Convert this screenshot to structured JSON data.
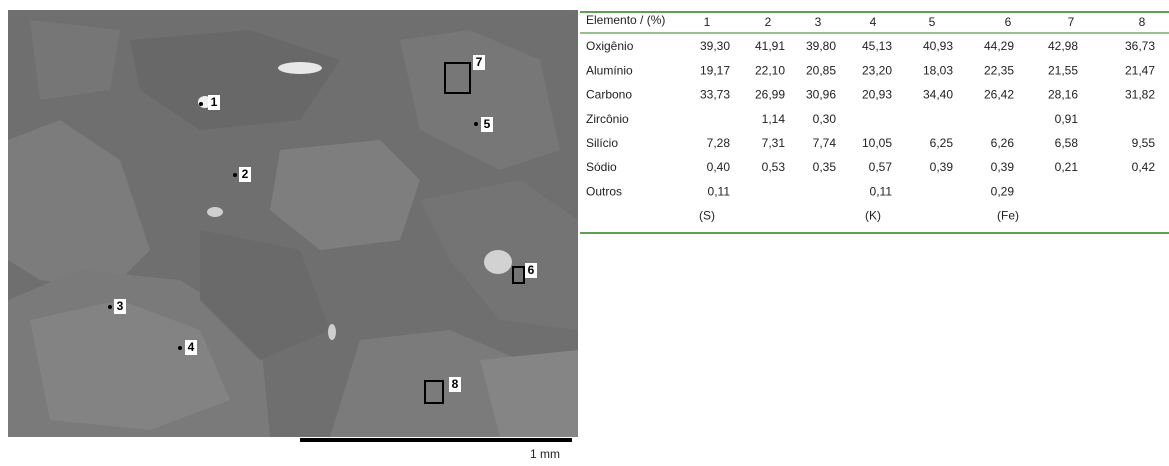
{
  "image": {
    "markers": [
      "1",
      "2",
      "3",
      "4",
      "5",
      "6",
      "7",
      "8"
    ],
    "scale_label": "1 mm"
  },
  "table": {
    "header": [
      "Elemento / (%)",
      "1",
      "2",
      "3",
      "4",
      "5",
      "6",
      "7",
      "8"
    ],
    "rows": [
      {
        "label": "Oxigênio",
        "values": [
          "39,30",
          "41,91",
          "39,80",
          "45,13",
          "40,93",
          "44,29",
          "42,98",
          "36,73"
        ]
      },
      {
        "label": "Alumínio",
        "values": [
          "19,17",
          "22,10",
          "20,85",
          "23,20",
          "18,03",
          "22,35",
          "21,55",
          "21,47"
        ]
      },
      {
        "label": "Carbono",
        "values": [
          "33,73",
          "26,99",
          "30,96",
          "20,93",
          "34,40",
          "26,42",
          "28,16",
          "31,82"
        ]
      },
      {
        "label": "Zircônio",
        "values": [
          null,
          "1,14",
          "0,30",
          null,
          null,
          null,
          "0,91",
          null
        ]
      },
      {
        "label": "Silício",
        "values": [
          "7,28",
          "7,31",
          "7,74",
          "10,05",
          "6,25",
          "6,26",
          "6,58",
          "9,55"
        ]
      },
      {
        "label": "Sódio",
        "values": [
          "0,40",
          "0,53",
          "0,35",
          "0,57",
          "0,39",
          "0,39",
          "0,21",
          "0,42"
        ]
      },
      {
        "label": "Outros",
        "values": [
          "0,11",
          null,
          null,
          "0,11",
          null,
          "0,29",
          null,
          null
        ]
      },
      {
        "label": null,
        "values": [
          "(S)",
          null,
          null,
          "(K)",
          null,
          "(Fe)",
          null,
          null
        ]
      }
    ]
  }
}
